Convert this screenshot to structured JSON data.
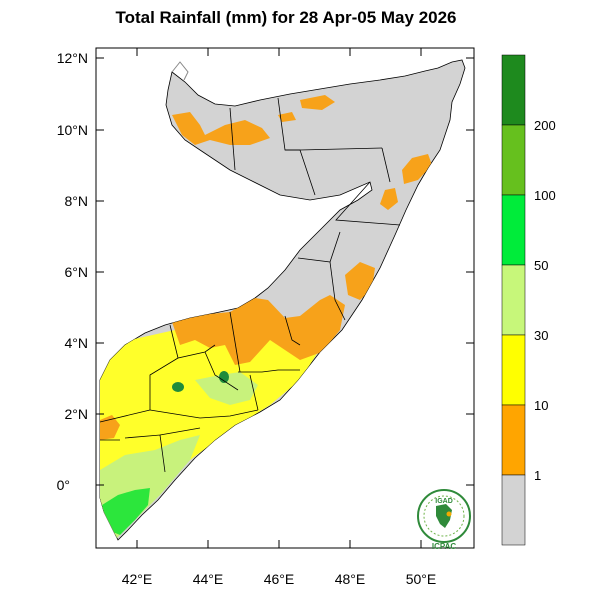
{
  "title": "Total Rainfall (mm) for 28 Apr-05 May 2026",
  "lat_labels": [
    "12°N",
    "10°N",
    "8°N",
    "6°N",
    "4°N",
    "2°N",
    "0°"
  ],
  "lon_labels": [
    "42°E",
    "44°E",
    "46°E",
    "48°E",
    "50°E"
  ],
  "legend": {
    "bins": [
      {
        "label": "",
        "color": "#1e8a1e"
      },
      {
        "label": "200",
        "color": "#66c01e"
      },
      {
        "label": "100",
        "color": "#00ec3a"
      },
      {
        "label": "50",
        "color": "#c7f77a"
      },
      {
        "label": "30",
        "color": "#ffff00"
      },
      {
        "label": "10",
        "color": "#ffa500"
      },
      {
        "label": "1",
        "color": "#d3d3d3"
      }
    ]
  },
  "logo": {
    "top_text": "IGAD",
    "bottom_text": "ICPAC"
  },
  "colors": {
    "land_dry": "#d3d3d3",
    "orange": "#f7a21a",
    "yellow": "#ffff2a",
    "light_green": "#c8f27c",
    "green": "#2ce63c",
    "dark_green": "#1f8b3b"
  }
}
